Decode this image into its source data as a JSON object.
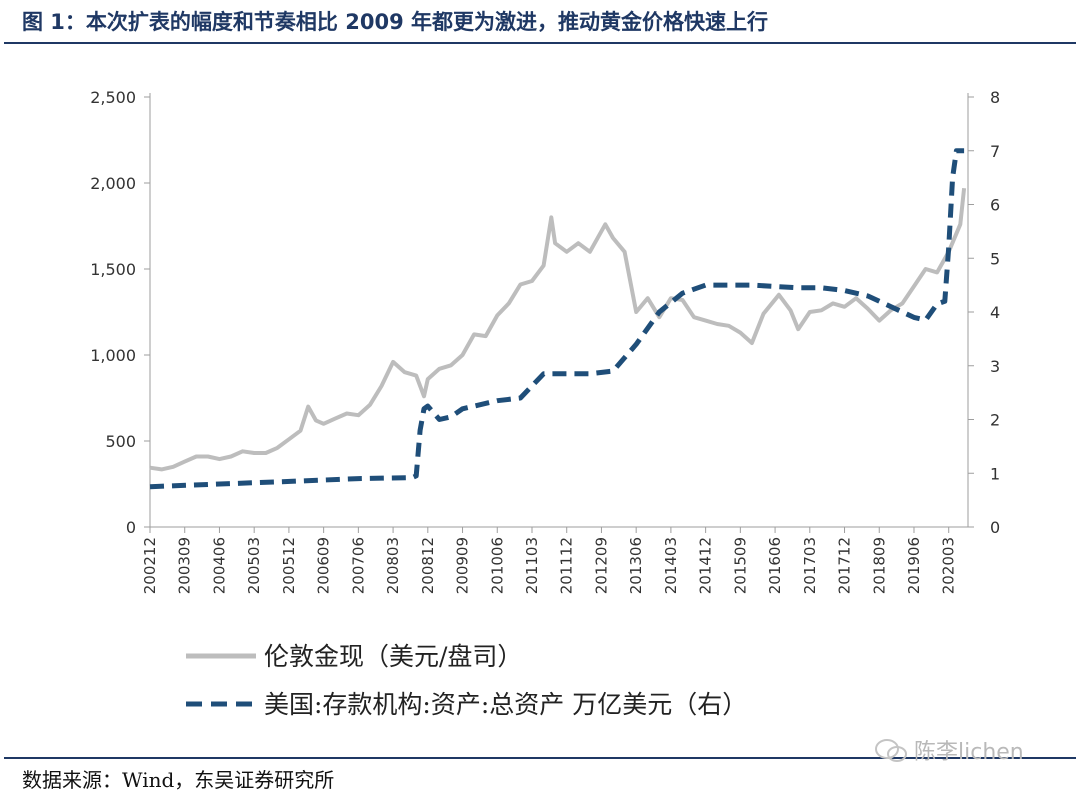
{
  "header": {
    "title": "图 1：本次扩表的幅度和节奏相比 2009 年都更为激进，推动黄金价格快速上行"
  },
  "footer": {
    "source": "数据来源：Wind，东吴证券研究所",
    "watermark": "陈李lichen"
  },
  "colors": {
    "gold": "#bdbdbd",
    "fed": "#1f4e79",
    "accent": "#1f3864"
  },
  "chart_data": {
    "type": "line",
    "xlabel": "",
    "ylabel": "",
    "x_tick_labels": [
      "200212",
      "200309",
      "200406",
      "200503",
      "200512",
      "200609",
      "200706",
      "200803",
      "200812",
      "200909",
      "201006",
      "201103",
      "201112",
      "201209",
      "201306",
      "201403",
      "201412",
      "201509",
      "201606",
      "201703",
      "201712",
      "201809",
      "201906",
      "202003"
    ],
    "y_left": {
      "ylim": [
        0,
        2500
      ],
      "ticks": [
        "0",
        "500",
        "1,000",
        "1,500",
        "2,000",
        "2,500"
      ]
    },
    "y_right": {
      "ylim": [
        0,
        8
      ],
      "ticks": [
        "0",
        "1",
        "2",
        "3",
        "4",
        "5",
        "6",
        "7",
        "8"
      ]
    },
    "grid": false,
    "legend_position": "bottom",
    "series": [
      {
        "name": "伦敦金现（美元/盘司）",
        "axis": "left",
        "style": "solid",
        "points": [
          [
            "2002-12",
            345
          ],
          [
            "2003-03",
            335
          ],
          [
            "2003-06",
            350
          ],
          [
            "2003-09",
            380
          ],
          [
            "2003-12",
            410
          ],
          [
            "2004-03",
            410
          ],
          [
            "2004-06",
            395
          ],
          [
            "2004-09",
            410
          ],
          [
            "2004-12",
            440
          ],
          [
            "2005-03",
            430
          ],
          [
            "2005-06",
            430
          ],
          [
            "2005-09",
            460
          ],
          [
            "2005-12",
            510
          ],
          [
            "2006-03",
            560
          ],
          [
            "2006-05",
            700
          ],
          [
            "2006-07",
            620
          ],
          [
            "2006-09",
            600
          ],
          [
            "2006-12",
            630
          ],
          [
            "2007-03",
            660
          ],
          [
            "2007-06",
            650
          ],
          [
            "2007-09",
            710
          ],
          [
            "2007-12",
            820
          ],
          [
            "2008-03",
            960
          ],
          [
            "2008-06",
            900
          ],
          [
            "2008-09",
            880
          ],
          [
            "2008-11",
            760
          ],
          [
            "2008-12",
            860
          ],
          [
            "2009-03",
            920
          ],
          [
            "2009-06",
            940
          ],
          [
            "2009-09",
            1000
          ],
          [
            "2009-12",
            1120
          ],
          [
            "2010-03",
            1110
          ],
          [
            "2010-06",
            1230
          ],
          [
            "2010-09",
            1300
          ],
          [
            "2010-12",
            1410
          ],
          [
            "2011-03",
            1430
          ],
          [
            "2011-06",
            1520
          ],
          [
            "2011-08",
            1800
          ],
          [
            "2011-09",
            1650
          ],
          [
            "2011-12",
            1600
          ],
          [
            "2012-03",
            1650
          ],
          [
            "2012-06",
            1600
          ],
          [
            "2012-10",
            1760
          ],
          [
            "2012-12",
            1680
          ],
          [
            "2013-03",
            1600
          ],
          [
            "2013-06",
            1250
          ],
          [
            "2013-09",
            1330
          ],
          [
            "2013-12",
            1220
          ],
          [
            "2014-03",
            1330
          ],
          [
            "2014-06",
            1320
          ],
          [
            "2014-09",
            1220
          ],
          [
            "2014-12",
            1200
          ],
          [
            "2015-03",
            1180
          ],
          [
            "2015-06",
            1170
          ],
          [
            "2015-09",
            1130
          ],
          [
            "2015-12",
            1070
          ],
          [
            "2016-03",
            1240
          ],
          [
            "2016-07",
            1350
          ],
          [
            "2016-10",
            1260
          ],
          [
            "2016-12",
            1150
          ],
          [
            "2017-03",
            1250
          ],
          [
            "2017-06",
            1260
          ],
          [
            "2017-09",
            1300
          ],
          [
            "2017-12",
            1280
          ],
          [
            "2018-03",
            1330
          ],
          [
            "2018-06",
            1270
          ],
          [
            "2018-09",
            1200
          ],
          [
            "2018-12",
            1260
          ],
          [
            "2019-03",
            1300
          ],
          [
            "2019-06",
            1400
          ],
          [
            "2019-09",
            1500
          ],
          [
            "2019-12",
            1480
          ],
          [
            "2020-03",
            1600
          ],
          [
            "2020-06",
            1760
          ],
          [
            "2020-07",
            1970
          ]
        ]
      },
      {
        "name": "美国:存款机构:资产:总资产 万亿美元（右）",
        "axis": "right",
        "style": "dashed",
        "points": [
          [
            "2002-12",
            0.75
          ],
          [
            "2004-06",
            0.8
          ],
          [
            "2006-01",
            0.85
          ],
          [
            "2007-06",
            0.9
          ],
          [
            "2008-08",
            0.92
          ],
          [
            "2008-09",
            0.95
          ],
          [
            "2008-10",
            1.8
          ],
          [
            "2008-11",
            2.2
          ],
          [
            "2008-12",
            2.25
          ],
          [
            "2009-03",
            2.0
          ],
          [
            "2009-06",
            2.05
          ],
          [
            "2009-09",
            2.2
          ],
          [
            "2010-06",
            2.35
          ],
          [
            "2010-12",
            2.4
          ],
          [
            "2011-06",
            2.85
          ],
          [
            "2012-06",
            2.85
          ],
          [
            "2012-12",
            2.9
          ],
          [
            "2013-06",
            3.4
          ],
          [
            "2013-12",
            4.0
          ],
          [
            "2014-06",
            4.35
          ],
          [
            "2014-12",
            4.5
          ],
          [
            "2015-12",
            4.5
          ],
          [
            "2016-12",
            4.45
          ],
          [
            "2017-06",
            4.45
          ],
          [
            "2017-12",
            4.4
          ],
          [
            "2018-06",
            4.3
          ],
          [
            "2018-12",
            4.1
          ],
          [
            "2019-06",
            3.9
          ],
          [
            "2019-09",
            3.85
          ],
          [
            "2019-12",
            4.15
          ],
          [
            "2020-02",
            4.2
          ],
          [
            "2020-03",
            5.2
          ],
          [
            "2020-04",
            6.5
          ],
          [
            "2020-05",
            7.0
          ],
          [
            "2020-07",
            7.0
          ]
        ]
      }
    ]
  }
}
